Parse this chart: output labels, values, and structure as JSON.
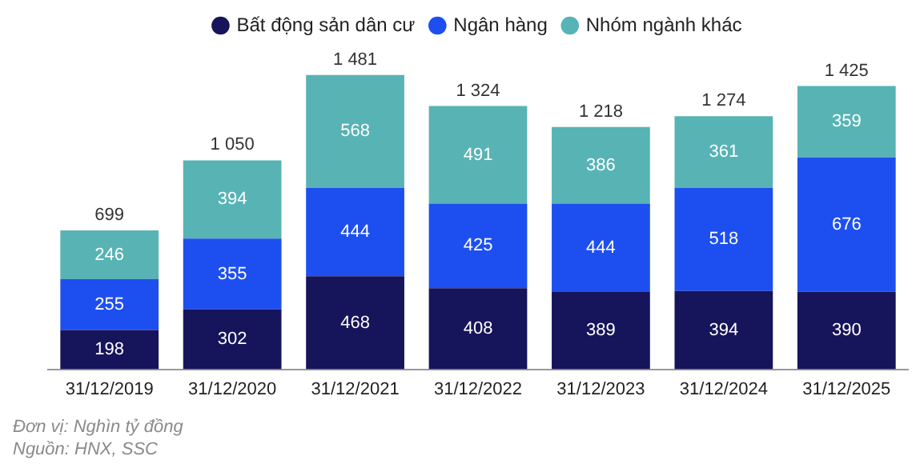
{
  "chart_data": {
    "type": "bar",
    "stacked": true,
    "categories": [
      "31/12/2019",
      "31/12/2020",
      "31/12/2021",
      "31/12/2022",
      "31/12/2023",
      "31/12/2024",
      "31/12/2025"
    ],
    "series": [
      {
        "name": "Bất động sản dân cư",
        "color": "#16145a",
        "values": [
          198,
          302,
          468,
          408,
          389,
          394,
          390
        ]
      },
      {
        "name": "Ngân hàng",
        "color": "#1d4ff0",
        "values": [
          255,
          355,
          444,
          425,
          444,
          518,
          676
        ]
      },
      {
        "name": "Nhóm ngành khác",
        "color": "#58b3b5",
        "values": [
          246,
          394,
          568,
          491,
          386,
          361,
          359
        ]
      }
    ],
    "totals": [
      "699",
      "1 050",
      "1 481",
      "1 324",
      "1 218",
      "1 274",
      "1 425"
    ],
    "data_labels": true,
    "legend": "top",
    "grid": false,
    "tick_labels": "x",
    "annotations": [
      "Đơn vị: Nghìn tỷ đồng",
      "Nguồn: HNX, SSC"
    ]
  }
}
